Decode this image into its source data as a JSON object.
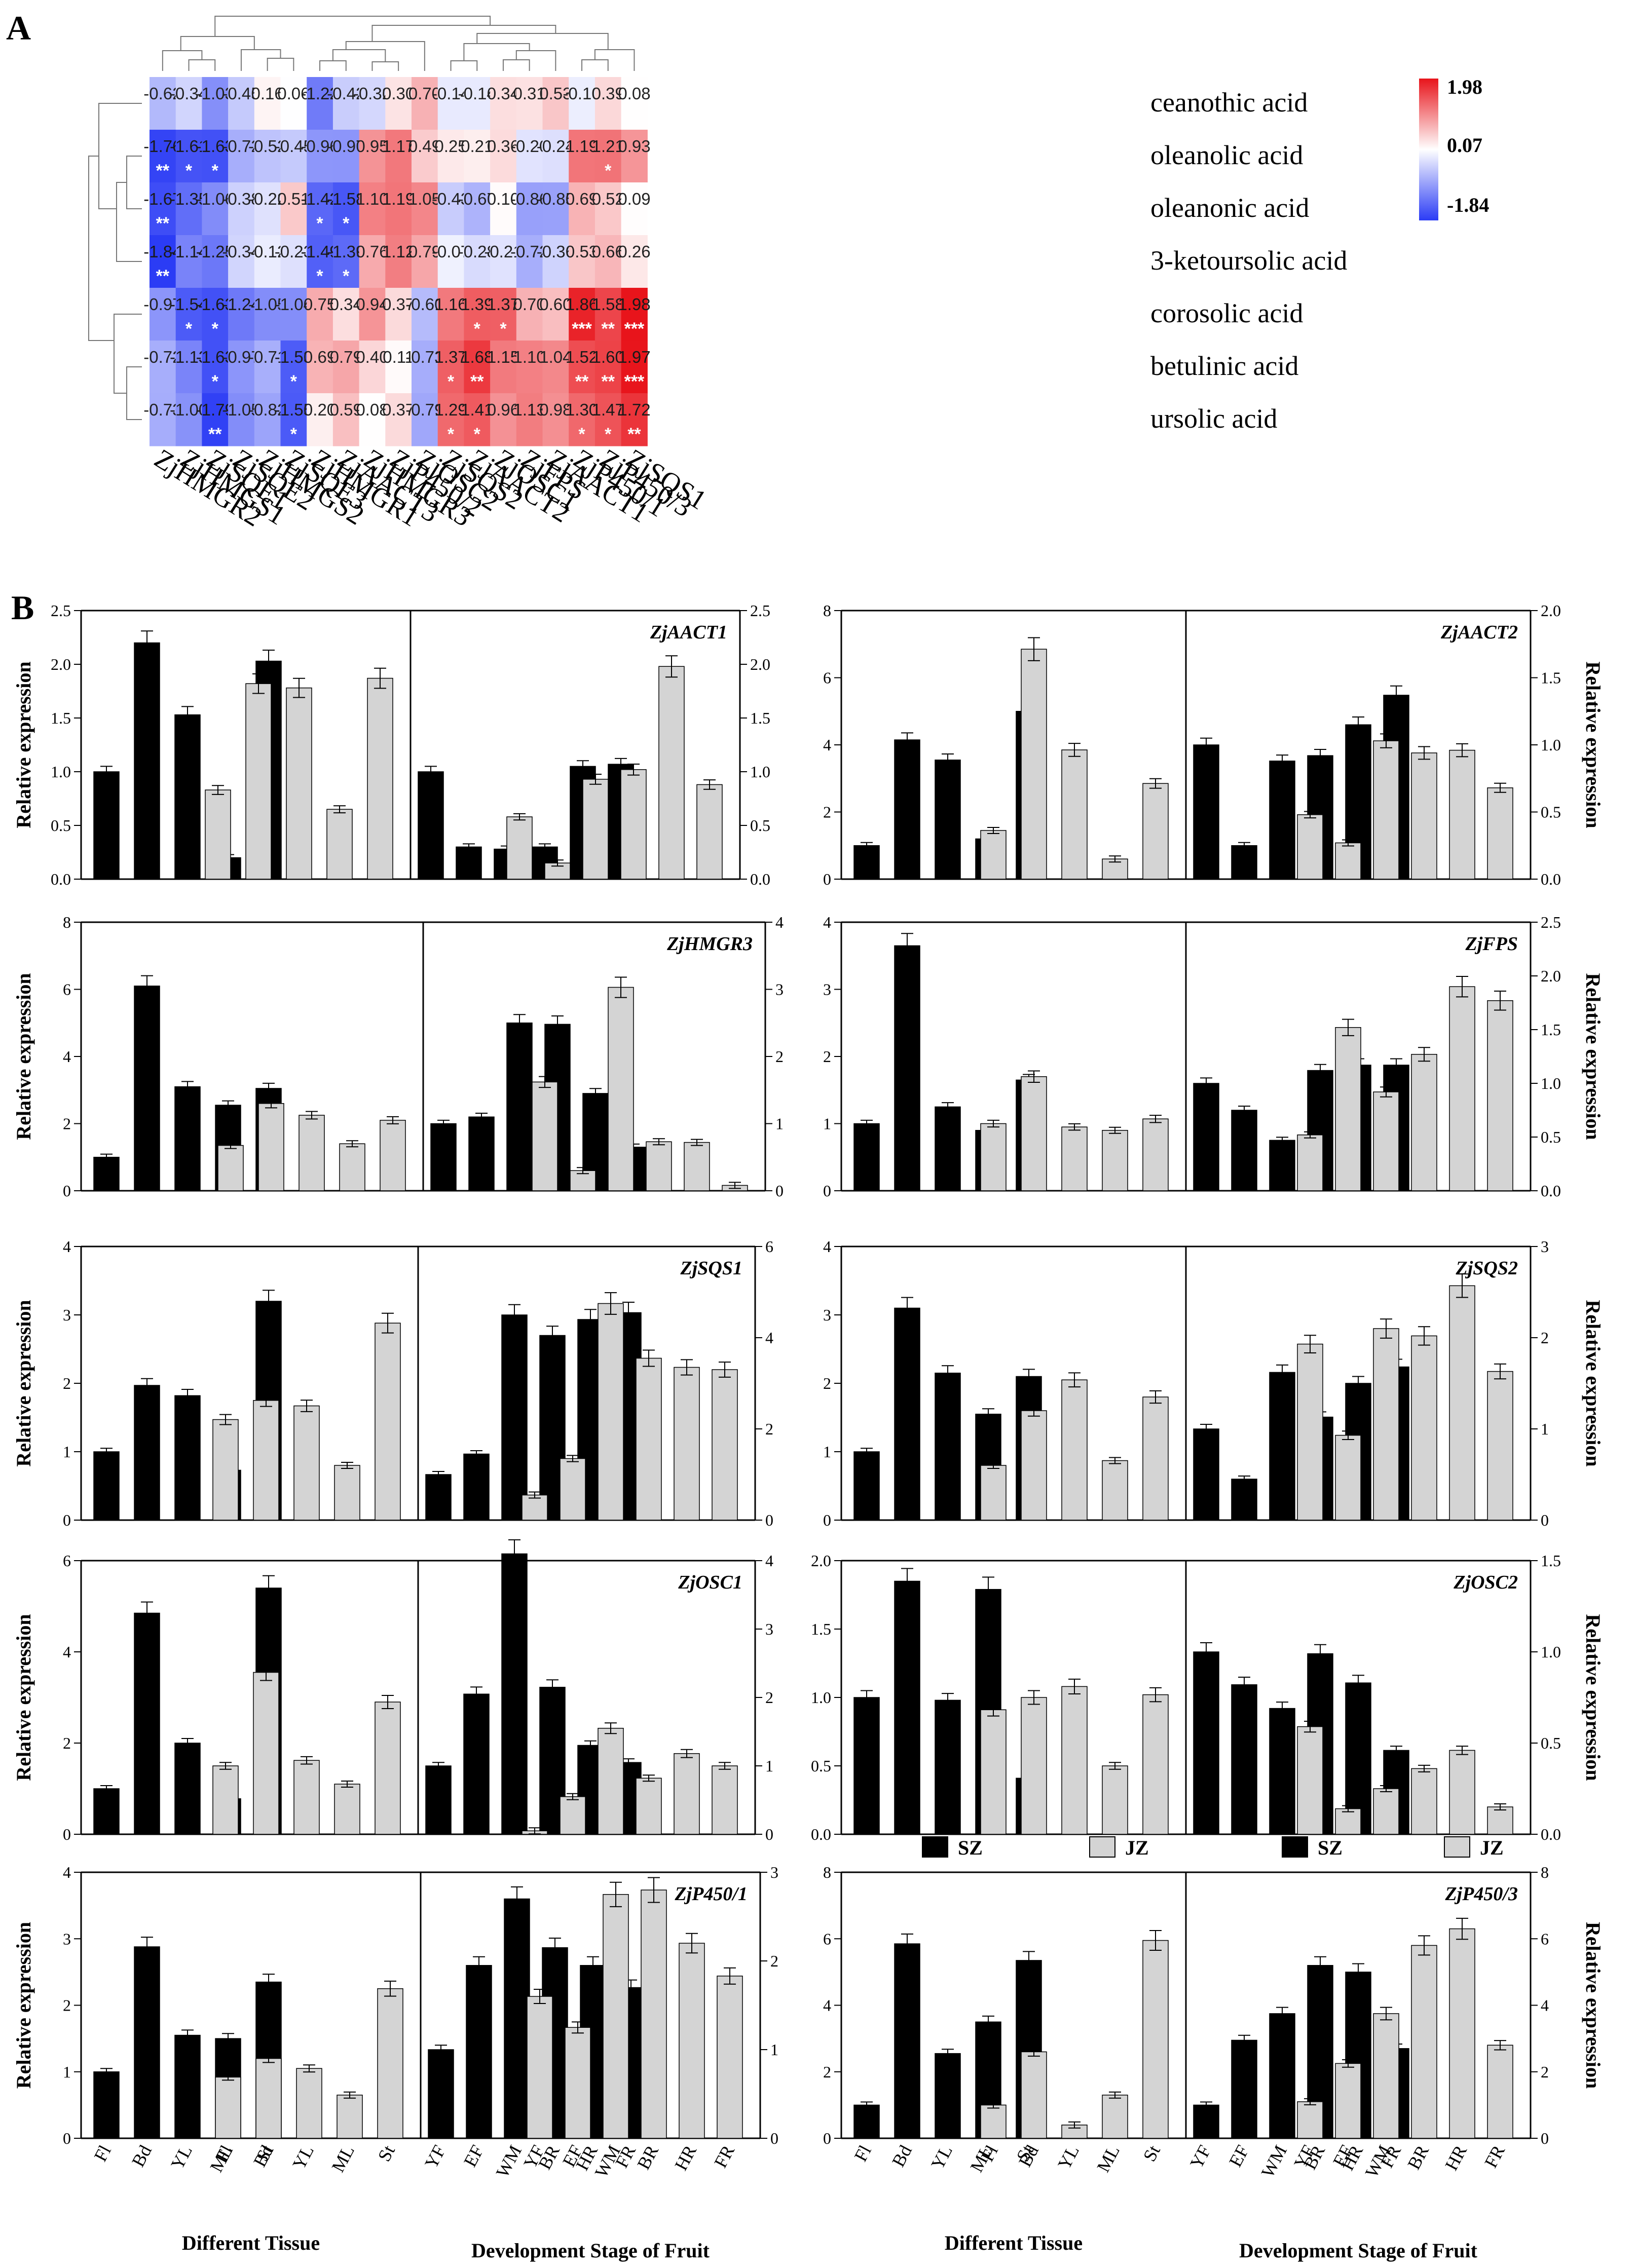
{
  "figure": {
    "panel_a_label": "A",
    "panel_b_label": "B"
  },
  "colors": {
    "high": "#e8141b",
    "mid": "#ffffff",
    "low": "#2b3cf5",
    "sz_bar": "#000000",
    "jz_bar": "#d4d4d4"
  },
  "chart_data": [
    {
      "type": "heatmap",
      "title": "",
      "rows": [
        "ceanothic acid",
        "oleanolic acid",
        "oleanonic acid",
        "3-ketoursolic acid",
        "corosolic acid",
        "betulinic acid",
        "ursolic acid"
      ],
      "columns": [
        "ZjHMGR2",
        "ZjHMGS1",
        "ZjSQE1",
        "ZjSQE2",
        "ZjHMGS2",
        "ZjSQE3",
        "ZjHMGR1",
        "ZjAACT3",
        "ZjHMGR3",
        "ZjP450/2",
        "ZjOSC2",
        "ZjSQS2",
        "ZjAACT2",
        "ZjOSC1",
        "ZjFPS",
        "ZjAACT1",
        "ZjP450/1",
        "ZjP450/3",
        "ZjSQS1"
      ],
      "values": [
        [
          -0.62,
          -0.34,
          -1.03,
          -0.45,
          0.16,
          0.06,
          -1.22,
          -0.42,
          -0.32,
          0.3,
          0.7,
          -0.14,
          -0.14,
          0.34,
          0.31,
          0.53,
          -0.1,
          0.39,
          0.08
        ],
        [
          -1.76,
          -1.61,
          -1.63,
          -0.72,
          -0.52,
          -0.45,
          -0.96,
          -0.97,
          0.95,
          1.17,
          0.49,
          0.25,
          0.21,
          0.36,
          -0.2,
          -0.24,
          1.19,
          1.21,
          0.93
        ],
        [
          -1.67,
          -1.35,
          -1.06,
          -0.38,
          -0.22,
          0.51,
          -1.42,
          -1.58,
          1.1,
          1.19,
          1.05,
          -0.43,
          -0.67,
          0.1,
          -0.86,
          -0.85,
          0.69,
          0.52,
          0.09
        ],
        [
          -1.84,
          -1.14,
          -1.25,
          -0.34,
          -0.12,
          -0.23,
          -1.49,
          -1.39,
          0.76,
          1.12,
          0.79,
          -0.07,
          -0.28,
          -0.21,
          -0.72,
          -0.36,
          0.53,
          0.66,
          0.26
        ],
        [
          -0.97,
          -1.54,
          -1.63,
          -1.24,
          -1.05,
          -1.04,
          0.75,
          0.34,
          0.94,
          0.37,
          -0.6,
          1.16,
          1.39,
          1.37,
          0.7,
          0.6,
          1.86,
          1.58,
          1.98
        ],
        [
          -0.72,
          -1.13,
          -1.63,
          -0.97,
          -0.71,
          -1.53,
          0.69,
          0.79,
          0.4,
          0.11,
          -0.73,
          1.37,
          1.68,
          1.15,
          1.1,
          1.04,
          1.52,
          1.6,
          1.97
        ],
        [
          -0.73,
          -1.0,
          -1.79,
          -1.05,
          -0.82,
          -1.55,
          0.2,
          0.59,
          0.08,
          0.37,
          -0.79,
          1.29,
          1.41,
          0.96,
          1.13,
          0.98,
          1.3,
          1.47,
          1.72
        ]
      ],
      "stars": [
        [
          "",
          "",
          "",
          "",
          "",
          "",
          "",
          "",
          "",
          "",
          "",
          "",
          "",
          "",
          "",
          "",
          "",
          "",
          ""
        ],
        [
          "**",
          "*",
          "*",
          "",
          "",
          "",
          "",
          "",
          "",
          "",
          "",
          "",
          "",
          "",
          "",
          "",
          "",
          "*",
          ""
        ],
        [
          "**",
          "",
          "",
          "",
          "",
          "",
          "*",
          "*",
          "",
          "",
          "",
          "",
          "",
          "",
          "",
          "",
          "",
          "",
          ""
        ],
        [
          "**",
          "",
          "",
          "",
          "",
          "",
          "*",
          "*",
          "",
          "",
          "",
          "",
          "",
          "",
          "",
          "",
          "",
          "",
          ""
        ],
        [
          "",
          "*",
          "*",
          "",
          "",
          "",
          "",
          "",
          "",
          "",
          "",
          "",
          "*",
          "*",
          "",
          "",
          "***",
          "**",
          "***"
        ],
        [
          "",
          "",
          "*",
          "",
          "",
          "*",
          "",
          "",
          "",
          "",
          "",
          "*",
          "**",
          "",
          "",
          "",
          "**",
          "**",
          "***"
        ],
        [
          "",
          "",
          "**",
          "",
          "",
          "*",
          "",
          "",
          "",
          "",
          "",
          "*",
          "*",
          "",
          "",
          "",
          "*",
          "*",
          "**"
        ]
      ],
      "colorbar": {
        "max": "1.98",
        "mid": "0.07",
        "min": "-1.84"
      }
    },
    {
      "type": "bar",
      "gene": "ZjAACT1",
      "tissue_categories": [
        "Fl",
        "Bd",
        "YL",
        "ML",
        "St"
      ],
      "stage_categories": [
        "YF",
        "EF",
        "WM",
        "BR",
        "HR",
        "FR"
      ],
      "tissue": {
        "SZ": [
          1.0,
          2.2,
          1.53,
          0.2,
          2.03
        ],
        "JZ": [
          0.83,
          1.82,
          1.78,
          0.65,
          1.87
        ],
        "ylim": [
          0,
          2.5
        ],
        "ticks": [
          "0.0",
          "0.5",
          "1.0",
          "1.5",
          "2.0",
          "2.5"
        ]
      },
      "stage": {
        "SZ": [
          1.0,
          0.3,
          0.28,
          0.3,
          1.05,
          1.07
        ],
        "JZ": [
          0.58,
          0.15,
          0.93,
          1.02,
          1.98,
          0.88
        ],
        "ylim": [
          0,
          2.5
        ],
        "ticks": [
          "0.0",
          "0.5",
          "1.0",
          "1.5",
          "2.0",
          "2.5"
        ]
      },
      "ylabel_left": "Relative expression",
      "ylabel_right": ""
    },
    {
      "type": "bar",
      "gene": "ZjAACT2",
      "tissue_categories": [
        "Fl",
        "Bd",
        "YL",
        "ML",
        "St"
      ],
      "stage_categories": [
        "YF",
        "EF",
        "WM",
        "BR",
        "HR",
        "FR"
      ],
      "tissue": {
        "SZ": [
          1.0,
          4.15,
          3.55,
          1.2,
          5.0
        ],
        "JZ": [
          1.45,
          6.85,
          3.85,
          0.6,
          2.85
        ],
        "ylim": [
          0,
          8
        ],
        "ticks": [
          "0",
          "2",
          "4",
          "6",
          "8"
        ]
      },
      "stage": {
        "SZ": [
          1.0,
          0.25,
          0.88,
          0.92,
          1.15,
          1.37
        ],
        "JZ": [
          0.48,
          0.27,
          1.03,
          0.94,
          0.96,
          0.68
        ],
        "ylim": [
          0,
          2.0
        ],
        "ticks": [
          "0.0",
          "0.5",
          "1.0",
          "1.5",
          "2.0"
        ]
      },
      "ylabel_left": "",
      "ylabel_right": "Relative expression"
    },
    {
      "type": "bar",
      "gene": "ZjHMGR3",
      "tissue_categories": [
        "Fl",
        "Bd",
        "YL",
        "ML",
        "St"
      ],
      "stage_categories": [
        "YF",
        "EF",
        "WM",
        "BR",
        "HR",
        "FR"
      ],
      "tissue": {
        "SZ": [
          1.0,
          6.1,
          3.1,
          2.55,
          3.05
        ],
        "JZ": [
          1.35,
          2.6,
          2.25,
          1.4,
          2.1
        ],
        "ylim": [
          0,
          8
        ],
        "ticks": [
          "0",
          "2",
          "4",
          "6",
          "8"
        ]
      },
      "stage": {
        "SZ": [
          1.0,
          1.1,
          2.5,
          2.48,
          1.45,
          0.65
        ],
        "JZ": [
          1.62,
          0.3,
          3.03,
          0.73,
          0.72,
          0.08
        ],
        "ylim": [
          0,
          4
        ],
        "ticks": [
          "0",
          "1",
          "2",
          "3",
          "4"
        ]
      },
      "ylabel_left": "Relative expression",
      "ylabel_right": ""
    },
    {
      "type": "bar",
      "gene": "ZjFPS",
      "tissue_categories": [
        "Fl",
        "Bd",
        "YL",
        "ML",
        "St"
      ],
      "stage_categories": [
        "YF",
        "EF",
        "WM",
        "BR",
        "HR",
        "FR"
      ],
      "tissue": {
        "SZ": [
          1.0,
          3.65,
          1.25,
          0.9,
          1.65
        ],
        "JZ": [
          1.0,
          1.7,
          0.95,
          0.9,
          1.07
        ],
        "ylim": [
          0,
          4
        ],
        "ticks": [
          "0",
          "1",
          "2",
          "3",
          "4"
        ]
      },
      "stage": {
        "SZ": [
          1.0,
          0.75,
          0.47,
          1.12,
          1.17,
          1.17
        ],
        "JZ": [
          0.52,
          1.52,
          0.92,
          1.27,
          1.9,
          1.77
        ],
        "ylim": [
          0,
          2.5
        ],
        "ticks": [
          "0.0",
          "0.5",
          "1.0",
          "1.5",
          "2.0",
          "2.5"
        ]
      },
      "ylabel_left": "",
      "ylabel_right": "Relative expression"
    },
    {
      "type": "bar",
      "gene": "ZjSQS1",
      "tissue_categories": [
        "Fl",
        "Bd",
        "YL",
        "ML",
        "St"
      ],
      "stage_categories": [
        "YF",
        "EF",
        "WM",
        "BR",
        "HR",
        "FR"
      ],
      "tissue": {
        "SZ": [
          1.0,
          1.97,
          1.82,
          0.73,
          3.2
        ],
        "JZ": [
          1.47,
          1.75,
          1.67,
          0.8,
          2.88
        ],
        "ylim": [
          0,
          4
        ],
        "ticks": [
          "0",
          "1",
          "2",
          "3",
          "4"
        ]
      },
      "stage": {
        "SZ": [
          1.0,
          1.45,
          4.5,
          4.05,
          4.4,
          4.55
        ],
        "JZ": [
          0.55,
          1.35,
          4.75,
          3.55,
          3.35,
          3.3
        ],
        "ylim": [
          0,
          6
        ],
        "ticks": [
          "0",
          "2",
          "4",
          "6"
        ]
      },
      "ylabel_left": "Relative expression",
      "ylabel_right": ""
    },
    {
      "type": "bar",
      "gene": "ZjSQS2",
      "tissue_categories": [
        "Fl",
        "Bd",
        "YL",
        "ML",
        "St"
      ],
      "stage_categories": [
        "YF",
        "EF",
        "WM",
        "BR",
        "HR",
        "FR"
      ],
      "tissue": {
        "SZ": [
          1.0,
          3.1,
          2.15,
          1.55,
          2.1
        ],
        "JZ": [
          0.8,
          1.6,
          2.05,
          0.87,
          1.8
        ],
        "ylim": [
          0,
          4
        ],
        "ticks": [
          "0",
          "1",
          "2",
          "3",
          "4"
        ]
      },
      "stage": {
        "SZ": [
          1.0,
          0.45,
          1.62,
          1.13,
          1.5,
          1.68
        ],
        "JZ": [
          1.93,
          0.93,
          2.1,
          2.02,
          2.57,
          1.63
        ],
        "ylim": [
          0,
          3
        ],
        "ticks": [
          "0",
          "1",
          "2",
          "3"
        ]
      },
      "ylabel_left": "",
      "ylabel_right": "Relative expression"
    },
    {
      "type": "bar",
      "gene": "ZjOSC1",
      "tissue_categories": [
        "Fl",
        "Bd",
        "YL",
        "ML",
        "St"
      ],
      "stage_categories": [
        "YF",
        "EF",
        "WM",
        "BR",
        "HR",
        "FR"
      ],
      "tissue": {
        "SZ": [
          1.0,
          4.85,
          2.0,
          0.78,
          5.4
        ],
        "JZ": [
          1.5,
          3.55,
          1.62,
          1.1,
          2.9
        ],
        "ylim": [
          0,
          6
        ],
        "ticks": [
          "0",
          "2",
          "4",
          "6"
        ]
      },
      "stage": {
        "SZ": [
          1.0,
          2.05,
          4.1,
          2.15,
          1.3,
          1.05
        ],
        "JZ": [
          0.05,
          0.55,
          1.55,
          0.82,
          1.18,
          1.0
        ],
        "ylim": [
          0,
          4
        ],
        "ticks": [
          "0",
          "1",
          "2",
          "3",
          "4"
        ]
      },
      "ylabel_left": "Relative expression",
      "ylabel_right": ""
    },
    {
      "type": "bar",
      "gene": "ZjOSC2",
      "tissue_categories": [
        "Fl",
        "Bd",
        "YL",
        "ML",
        "St"
      ],
      "stage_categories": [
        "YF",
        "EF",
        "WM",
        "BR",
        "HR",
        "FR"
      ],
      "tissue": {
        "SZ": [
          1.0,
          1.85,
          0.98,
          1.79,
          0.41
        ],
        "JZ": [
          0.91,
          1.0,
          1.08,
          0.5,
          1.02
        ],
        "ylim": [
          0,
          2.0
        ],
        "ticks": [
          "0.0",
          "0.5",
          "1.0",
          "1.5",
          "2.0"
        ]
      },
      "stage": {
        "SZ": [
          1.0,
          0.82,
          0.69,
          0.99,
          0.83,
          0.46
        ],
        "JZ": [
          0.59,
          0.14,
          0.25,
          0.36,
          0.46,
          0.15
        ],
        "ylim": [
          0,
          1.5
        ],
        "ticks": [
          "0.0",
          "0.5",
          "1.0",
          "1.5"
        ]
      },
      "ylabel_left": "",
      "ylabel_right": "Relative expression"
    },
    {
      "type": "bar",
      "gene": "ZjP450/1",
      "tissue_categories": [
        "Fl",
        "Bd",
        "YL",
        "ML",
        "St"
      ],
      "stage_categories": [
        "YF",
        "EF",
        "WM",
        "BR",
        "HR",
        "FR"
      ],
      "tissue": {
        "SZ": [
          1.0,
          2.88,
          1.55,
          1.5,
          2.35
        ],
        "JZ": [
          0.92,
          1.2,
          1.05,
          0.65,
          2.25
        ],
        "ylim": [
          0,
          4
        ],
        "ticks": [
          "0",
          "1",
          "2",
          "3",
          "4"
        ]
      },
      "stage": {
        "SZ": [
          1.0,
          1.95,
          2.7,
          2.15,
          1.95,
          1.7
        ],
        "JZ": [
          1.6,
          1.25,
          2.75,
          2.8,
          2.2,
          1.83
        ],
        "ylim": [
          0,
          3
        ],
        "ticks": [
          "0",
          "1",
          "2",
          "3"
        ]
      },
      "ylabel_left": "Relative expression",
      "ylabel_right": ""
    },
    {
      "type": "bar",
      "gene": "ZjP450/3",
      "tissue_categories": [
        "Fl",
        "Bd",
        "YL",
        "ML",
        "St"
      ],
      "stage_categories": [
        "YF",
        "EF",
        "WM",
        "BR",
        "HR",
        "FR"
      ],
      "tissue": {
        "SZ": [
          1.0,
          5.85,
          2.55,
          3.5,
          5.35
        ],
        "JZ": [
          1.0,
          2.6,
          0.4,
          1.3,
          5.95
        ],
        "ylim": [
          0,
          8
        ],
        "ticks": [
          "0",
          "2",
          "4",
          "6",
          "8"
        ]
      },
      "stage": {
        "SZ": [
          1.0,
          2.95,
          3.75,
          5.2,
          5.0,
          2.7
        ],
        "JZ": [
          1.1,
          2.25,
          3.75,
          5.8,
          6.3,
          2.8
        ],
        "ylim": [
          0,
          8
        ],
        "ticks": [
          "0",
          "2",
          "4",
          "6",
          "8"
        ]
      },
      "ylabel_left": "",
      "ylabel_right": "Relative expression"
    }
  ],
  "legend": {
    "sz": "SZ",
    "jz": "JZ"
  },
  "xlabels": {
    "tissue": "Different Tissue",
    "stage": "Development Stage of Fruit"
  }
}
